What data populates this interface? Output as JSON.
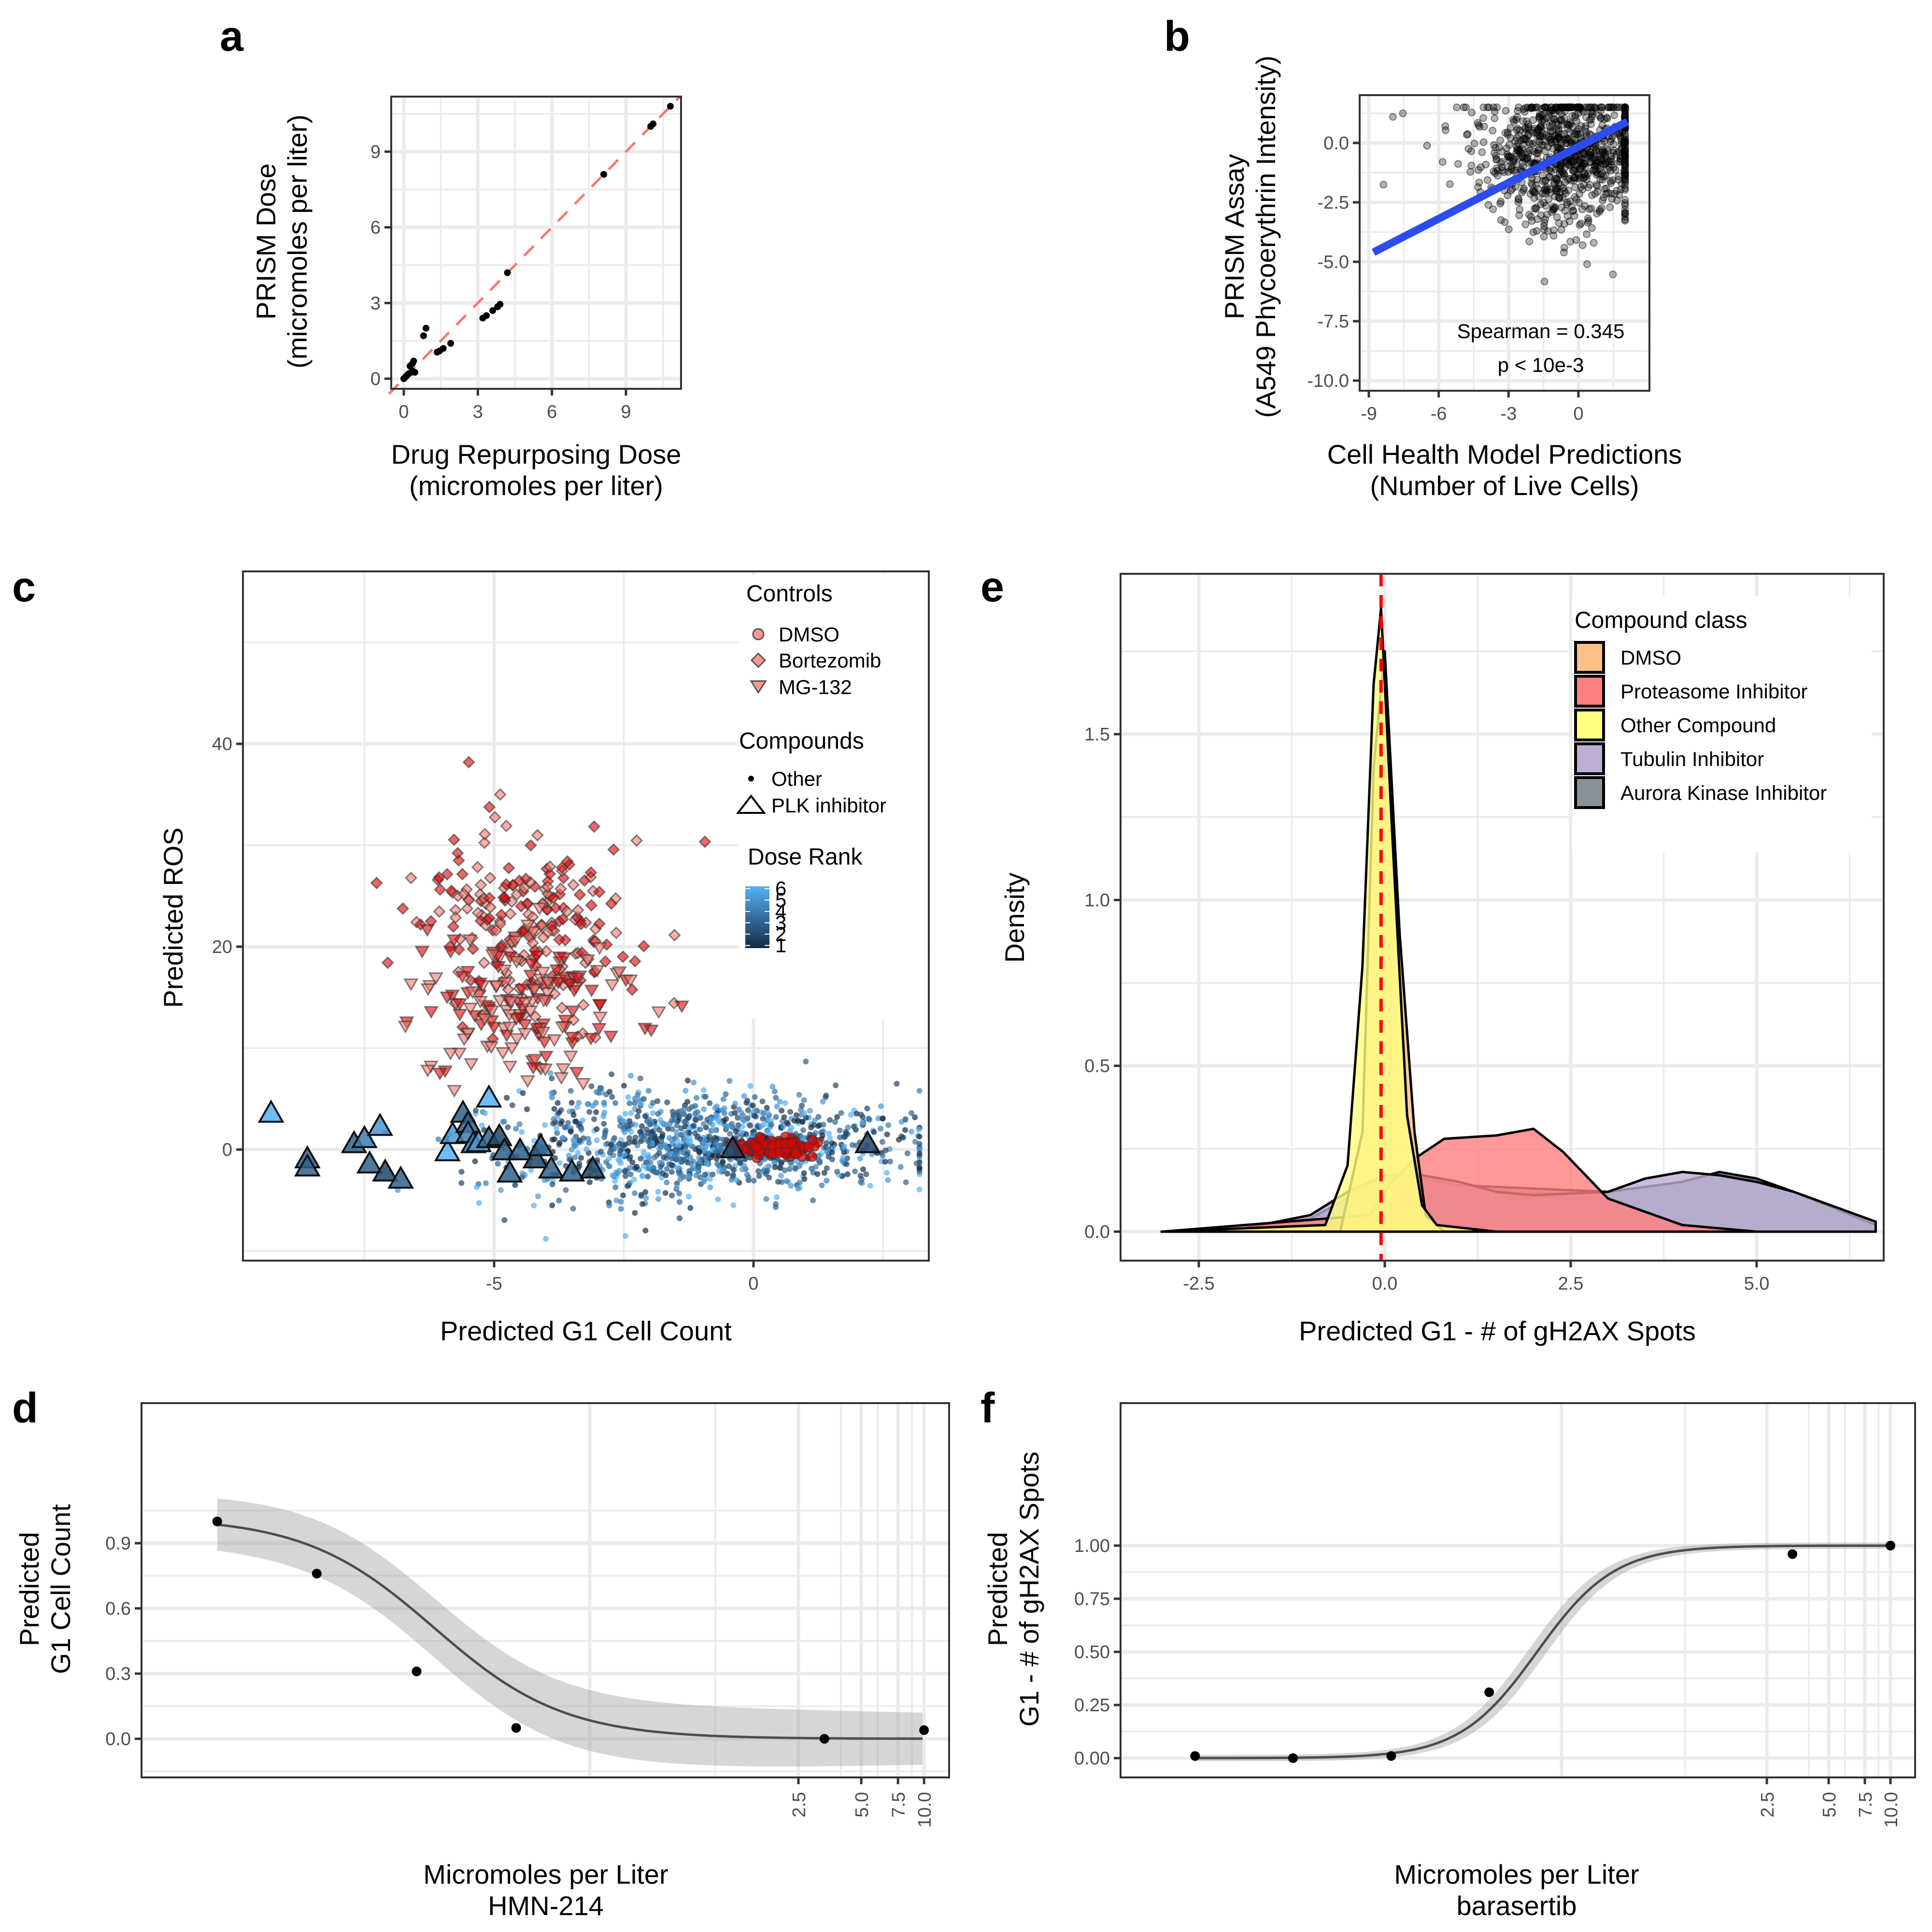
{
  "chart_data": [
    {
      "panel": "a",
      "type": "scatter",
      "xlabel": [
        "Drug Repurposing Dose",
        "(micromoles per liter)"
      ],
      "ylabel": [
        "PRISM Dose",
        "(micromoles per liter)"
      ],
      "xlim": [
        -0.6,
        11.2
      ],
      "ylim": [
        -0.6,
        11.2
      ],
      "xticks": [
        0,
        3,
        6,
        9
      ],
      "yticks": [
        0,
        3,
        6,
        9
      ],
      "grid": true,
      "reference_line": {
        "slope": 1,
        "intercept": 0,
        "style": "dashed",
        "color": "#f8766d"
      },
      "points": [
        [
          0.0,
          0.0
        ],
        [
          0.05,
          0.05
        ],
        [
          0.1,
          0.1
        ],
        [
          0.15,
          0.15
        ],
        [
          0.2,
          0.2
        ],
        [
          0.3,
          0.25
        ],
        [
          0.35,
          0.3
        ],
        [
          0.25,
          0.5
        ],
        [
          0.35,
          0.6
        ],
        [
          0.4,
          0.7
        ],
        [
          0.45,
          0.25
        ],
        [
          0.8,
          1.7
        ],
        [
          0.9,
          2.0
        ],
        [
          1.35,
          1.05
        ],
        [
          1.45,
          1.1
        ],
        [
          1.6,
          1.2
        ],
        [
          1.9,
          1.4
        ],
        [
          3.2,
          2.4
        ],
        [
          3.35,
          2.5
        ],
        [
          3.6,
          2.7
        ],
        [
          3.8,
          2.85
        ],
        [
          3.9,
          2.95
        ],
        [
          4.2,
          4.2
        ],
        [
          8.1,
          8.1
        ],
        [
          10.0,
          10.0
        ],
        [
          10.1,
          10.1
        ],
        [
          10.8,
          10.8
        ]
      ]
    },
    {
      "panel": "b",
      "type": "scatter",
      "xlabel": [
        "Cell Health Model Predictions",
        "(Number of Live Cells)"
      ],
      "ylabel": [
        "PRISM Assay",
        "(A549 Phycoerythrin Intensity)"
      ],
      "xlim": [
        -9.2,
        2.3
      ],
      "ylim": [
        -10.2,
        1.8
      ],
      "xticks": [
        -9,
        -6,
        -3,
        0
      ],
      "yticks": [
        0.0,
        -2.5,
        -5.0,
        -7.5,
        -10.0
      ],
      "ytick_labels": [
        "0.0",
        "-2.5",
        "-5.0",
        "-7.5",
        "-10.0"
      ],
      "grid": true,
      "fit_line": {
        "x": [
          -8.8,
          2.1
        ],
        "y": [
          -4.6,
          0.9
        ],
        "color": "#2b4cf0"
      },
      "annotation": [
        "Spearman = 0.345",
        "p < 10e-3"
      ],
      "n_points_approx": 2000,
      "point_cloud": {
        "x_center": -0.5,
        "y_center": -0.5,
        "x_spread": 1.6,
        "y_spread": 1.5,
        "min_x": -8.8,
        "max_x": 2.0,
        "min_y": -9.8,
        "max_y": 1.5
      }
    },
    {
      "panel": "c",
      "type": "scatter",
      "xlabel": "Predicted G1 Cell Count",
      "ylabel": "Predicted ROS",
      "xlim": [
        -9.8,
        3.4
      ],
      "ylim": [
        -11,
        58
      ],
      "xticks": [
        -5,
        0
      ],
      "yticks": [
        0,
        20,
        40
      ],
      "grid": true,
      "legend": {
        "position": "top-right",
        "controls": {
          "title": "Controls",
          "items": [
            "DMSO",
            "Bortezomib",
            "MG-132"
          ],
          "shapes": [
            "circle",
            "diamond",
            "triangle-down"
          ],
          "fill": "#f8766d"
        },
        "compounds": {
          "title": "Compounds",
          "items": [
            "Other",
            "PLK inhibitor"
          ],
          "shapes": [
            "dot",
            "triangle-up"
          ]
        },
        "dose_rank": {
          "title": "Dose Rank",
          "ticks": [
            6,
            5,
            4,
            3,
            2,
            1
          ],
          "low_color": "#132b43",
          "high_color": "#56b1f7"
        }
      },
      "groups": {
        "dmso": {
          "x_center": 0.4,
          "y_center": 0.2,
          "x_spread": 0.35,
          "y_spread": 0.5,
          "n_approx": 300
        },
        "bortezomib": {
          "x_center": -4.3,
          "y_center": 22,
          "x_spread": 1.0,
          "y_spread": 5,
          "n_approx": 350
        },
        "mg132": {
          "x_center": -4.5,
          "y_center": 15,
          "x_spread": 1.0,
          "y_spread": 3.5,
          "n_approx": 250
        },
        "other": {
          "x_center": -1.0,
          "y_center": 0.5,
          "x_spread": 1.5,
          "y_spread": 2.2,
          "n_approx": 2500
        },
        "plk": [
          [
            -9.3,
            3.5,
            6
          ],
          [
            -8.6,
            -1.0,
            3
          ],
          [
            -8.6,
            -1.8,
            3
          ],
          [
            -7.7,
            0.5,
            3
          ],
          [
            -7.5,
            1.0,
            4
          ],
          [
            -7.2,
            2.2,
            5
          ],
          [
            -7.4,
            -1.5,
            3
          ],
          [
            -7.1,
            -2.3,
            2
          ],
          [
            -6.8,
            -3.0,
            3
          ],
          [
            -5.9,
            -0.3,
            6
          ],
          [
            -5.8,
            1.4,
            5
          ],
          [
            -5.6,
            3.5,
            3
          ],
          [
            -5.5,
            2.5,
            3
          ],
          [
            -5.5,
            1.5,
            4
          ],
          [
            -5.4,
            0.5,
            4
          ],
          [
            -5.3,
            0.6,
            5
          ],
          [
            -5.1,
            1.0,
            3
          ],
          [
            -4.9,
            1.2,
            2
          ],
          [
            -4.8,
            -0.2,
            3
          ],
          [
            -4.7,
            -2.4,
            3
          ],
          [
            -4.5,
            -0.2,
            3
          ],
          [
            -4.2,
            -1.0,
            2
          ],
          [
            -4.1,
            0.2,
            3
          ],
          [
            -3.9,
            -2.0,
            3
          ],
          [
            -3.5,
            -2.3,
            3
          ],
          [
            -3.1,
            -2.0,
            2
          ],
          [
            -5.1,
            5.0,
            6
          ],
          [
            -0.4,
            0.0,
            2
          ],
          [
            2.2,
            0.5,
            2
          ]
        ]
      }
    },
    {
      "panel": "e",
      "type": "area",
      "xlabel": "Predicted G1 - # of gH2AX Spots",
      "ylabel": "Density",
      "xlim": [
        -3.4,
        6.8
      ],
      "ylim": [
        -0.09,
        1.97
      ],
      "xticks": [
        -2.5,
        0.0,
        2.5,
        5.0
      ],
      "xtick_labels": [
        "-2.5",
        "0.0",
        "2.5",
        "5.0"
      ],
      "yticks": [
        0.0,
        0.5,
        1.0,
        1.5
      ],
      "ytick_labels": [
        "0.0",
        "0.5",
        "1.0",
        "1.5"
      ],
      "grid": true,
      "vline": {
        "x": -0.05,
        "style": "dashed",
        "color": "#ff0000"
      },
      "legend": {
        "title": "Compound class",
        "position": "top-right"
      },
      "series": [
        {
          "name": "DMSO",
          "color": "#fdc086",
          "x": [
            -3.0,
            -0.6,
            -0.3,
            -0.15,
            0.0,
            0.2,
            0.4,
            0.55,
            0.8,
            1.5,
            6.6
          ],
          "y": [
            0,
            0,
            0.3,
            1.4,
            1.75,
            0.9,
            0.3,
            0.05,
            0,
            0,
            0
          ]
        },
        {
          "name": "Proteasome Inhibitor",
          "color": "#ff7f7f",
          "x": [
            -3.0,
            -0.2,
            0.1,
            0.4,
            0.8,
            1.5,
            2.0,
            2.4,
            3.0,
            4.0,
            5.0,
            6.6
          ],
          "y": [
            0,
            0.05,
            0.15,
            0.22,
            0.28,
            0.29,
            0.31,
            0.24,
            0.1,
            0.02,
            0,
            0
          ]
        },
        {
          "name": "Other Compound",
          "color": "#ffff80",
          "x": [
            -3.0,
            -0.8,
            -0.5,
            -0.3,
            -0.15,
            -0.05,
            0.1,
            0.3,
            0.5,
            0.7,
            1.5,
            6.6
          ],
          "y": [
            0,
            0.02,
            0.2,
            0.8,
            1.65,
            1.88,
            1.2,
            0.35,
            0.08,
            0.02,
            0,
            0
          ]
        },
        {
          "name": "Tubulin Inhibitor",
          "color": "#beaed4",
          "x": [
            -3.0,
            -2.0,
            -1.0,
            -0.5,
            0.0,
            0.5,
            1.0,
            1.5,
            2.0,
            3.0,
            3.5,
            4.0,
            4.5,
            5.0,
            5.5,
            6.6
          ],
          "y": [
            0,
            0.005,
            0.05,
            0.12,
            0.17,
            0.17,
            0.15,
            0.12,
            0.11,
            0.12,
            0.16,
            0.18,
            0.17,
            0.15,
            0.12,
            0.03
          ]
        },
        {
          "name": "Aurora Kinase Inhibitor",
          "color": "#8a9199",
          "x": [
            -3.0,
            -2.0,
            -1.0,
            -0.5,
            0.0,
            0.5,
            1.0,
            2.0,
            3.0,
            4.0,
            4.5,
            5.0,
            5.5,
            6.6
          ],
          "y": [
            0,
            0.005,
            0.04,
            0.1,
            0.17,
            0.16,
            0.14,
            0.13,
            0.12,
            0.15,
            0.18,
            0.16,
            0.12,
            0.02
          ]
        }
      ]
    },
    {
      "panel": "d",
      "type": "line",
      "xlabel": [
        "Micromoles per Liter",
        "HMN-214"
      ],
      "ylabel": [
        "Predicted",
        "G1 Cell Count"
      ],
      "x_scale": "log10",
      "xticks": [
        2.5,
        5.0,
        7.5,
        10.0
      ],
      "xtick_labels": [
        "2.5",
        "5.0",
        "7.5",
        "10.0"
      ],
      "yticks": [
        0.0,
        0.3,
        0.6,
        0.9
      ],
      "ytick_labels": [
        "0.0",
        "0.3",
        "0.6",
        "0.9"
      ],
      "ylim": [
        -0.14,
        1.18
      ],
      "xlim_log10": [
        -2.75,
        1.12
      ],
      "grid": true,
      "points": [
        {
          "x": 0.0041,
          "y": 1.0
        },
        {
          "x": 0.0123,
          "y": 0.76
        },
        {
          "x": 0.037,
          "y": 0.31
        },
        {
          "x": 0.111,
          "y": 0.05
        },
        {
          "x": 3.33,
          "y": 0.0
        },
        {
          "x": 10.0,
          "y": 0.04
        }
      ],
      "fit": {
        "type": "log-logistic",
        "top": 1.02,
        "bottom": 0.0,
        "ec50": 0.045,
        "hill": 1.4
      },
      "ci_band": {
        "upper_start": 1.13,
        "upper_end": 0.08,
        "lower_start": 0.88,
        "lower_end": -0.09
      }
    },
    {
      "panel": "f",
      "type": "line",
      "xlabel": [
        "Micromoles per Liter",
        "barasertib"
      ],
      "ylabel": [
        "Predicted",
        "G1 - # of gH2AX Spots"
      ],
      "x_scale": "log10",
      "xticks": [
        2.5,
        5.0,
        7.5,
        10.0
      ],
      "xtick_labels": [
        "2.5",
        "5.0",
        "7.5",
        "10.0"
      ],
      "yticks": [
        0.0,
        0.25,
        0.5,
        0.75,
        1.0
      ],
      "ytick_labels": [
        "0.00",
        "0.25",
        "0.50",
        "0.75",
        "1.00"
      ],
      "ylim": [
        -0.06,
        1.07
      ],
      "xlim_log10": [
        -2.75,
        1.12
      ],
      "grid": true,
      "points": [
        {
          "x": 0.0041,
          "y": 0.01
        },
        {
          "x": 0.0123,
          "y": 0.0
        },
        {
          "x": 0.037,
          "y": 0.01
        },
        {
          "x": 0.111,
          "y": 0.31
        },
        {
          "x": 3.33,
          "y": 0.96
        },
        {
          "x": 10.0,
          "y": 1.0
        }
      ],
      "fit": {
        "type": "log-logistic",
        "top": 1.0,
        "bottom": 0.0,
        "ec50": 0.19,
        "hill": 2.3
      },
      "ci_band": {
        "half_width_max": 0.05
      }
    }
  ],
  "panels": {
    "letters": {
      "a": "a",
      "b": "b",
      "c": "c",
      "d": "d",
      "e": "e",
      "f": "f"
    }
  }
}
